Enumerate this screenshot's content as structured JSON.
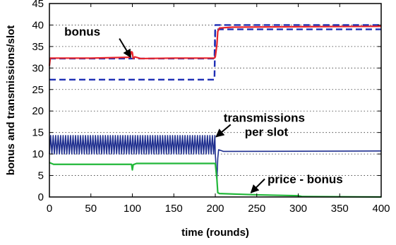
{
  "chart_data": {
    "type": "line",
    "title": "",
    "xlabel": "time (rounds)",
    "ylabel": "bonus and transmissions/slot",
    "xlim": [
      0,
      400
    ],
    "ylim": [
      0,
      45
    ],
    "x_ticks": [
      0,
      50,
      100,
      150,
      200,
      250,
      300,
      350,
      400
    ],
    "y_ticks": [
      0,
      5,
      10,
      15,
      20,
      25,
      30,
      35,
      40,
      45
    ],
    "grid": "horizontal dotted",
    "colors": {
      "bonus": "#e8232a",
      "reference": "#1f2fb5",
      "transmissions": "#1f2f8f",
      "price_minus_bonus": "#22b83a"
    },
    "series": [
      {
        "role": "bonus",
        "style": "solid red",
        "points": [
          [
            0,
            30.5
          ],
          [
            1,
            32.3
          ],
          [
            50,
            32.3
          ],
          [
            97,
            32.5
          ],
          [
            99,
            33.8
          ],
          [
            100,
            33.6
          ],
          [
            101,
            32.2
          ],
          [
            103,
            32.6
          ],
          [
            110,
            32.2
          ],
          [
            150,
            32.3
          ],
          [
            199,
            32.3
          ],
          [
            200,
            32.6
          ],
          [
            202,
            35.5
          ],
          [
            203,
            38.5
          ],
          [
            205,
            39.3
          ],
          [
            220,
            39.5
          ],
          [
            300,
            39.6
          ],
          [
            400,
            39.7
          ]
        ]
      },
      {
        "role": "reference upper",
        "style": "dashed blue",
        "points": [
          [
            0,
            32.2
          ],
          [
            199,
            32.2
          ],
          [
            200,
            40
          ],
          [
            400,
            40
          ]
        ]
      },
      {
        "role": "reference lower",
        "style": "dashed blue",
        "points": [
          [
            0,
            27.3
          ],
          [
            199,
            27.3
          ],
          [
            200,
            39
          ],
          [
            400,
            39
          ]
        ]
      },
      {
        "role": "transmissions",
        "style": "solid navy",
        "periodic": {
          "from": 0,
          "to": 200,
          "low": 10,
          "high": 14.3,
          "period": 3
        },
        "points": [
          [
            200,
            10
          ],
          [
            202,
            4
          ],
          [
            203,
            9
          ],
          [
            204,
            11
          ],
          [
            210,
            10.6
          ],
          [
            400,
            10.7
          ]
        ]
      },
      {
        "role": "price minus bonus",
        "style": "solid green",
        "points": [
          [
            0,
            8
          ],
          [
            5,
            7.6
          ],
          [
            99,
            7.6
          ],
          [
            100,
            6.3
          ],
          [
            101,
            7.5
          ],
          [
            105,
            7.8
          ],
          [
            199,
            7.8
          ],
          [
            200,
            7.8
          ],
          [
            202,
            4
          ],
          [
            203,
            1
          ],
          [
            205,
            0.8
          ],
          [
            250,
            0.5
          ],
          [
            300,
            0.3
          ],
          [
            305,
            0.1
          ],
          [
            400,
            0
          ]
        ]
      }
    ],
    "annotations": [
      {
        "lines": [
          "bonus"
        ],
        "x": 18,
        "y": 37.5,
        "arrow_to": [
          98,
          32.5
        ]
      },
      {
        "lines": [
          "transmissions",
          "per slot"
        ],
        "x": 210,
        "y": 17.5,
        "arrow_to": [
          201,
          14
        ]
      },
      {
        "lines": [
          "price - bonus"
        ],
        "x": 263,
        "y": 3.2,
        "arrow_to": [
          243,
          1
        ]
      }
    ]
  }
}
